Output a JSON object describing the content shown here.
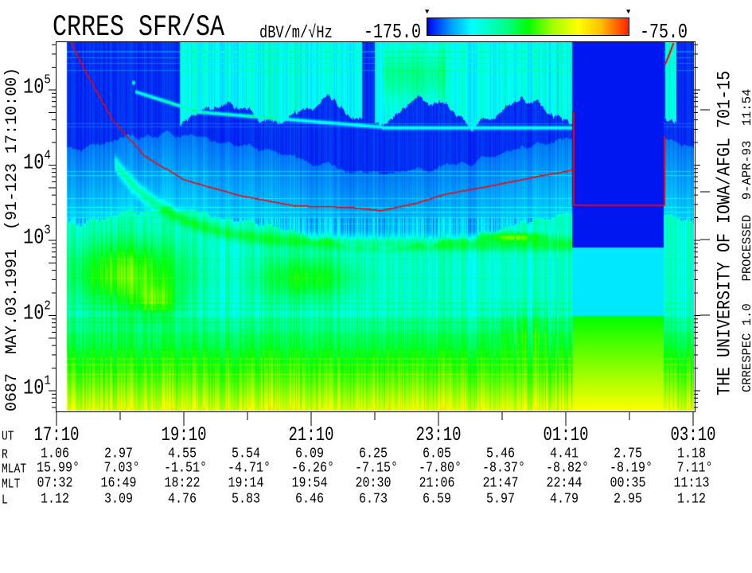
{
  "header": {
    "title": "CRRES SFR/SA",
    "units": "dBV/m/√Hz",
    "scale_min_label": "-175.0",
    "scale_max_label": "-75.0"
  },
  "side_left": "0687  MAY.03.1991  (91-123 17:10:00)",
  "side_right_main": "THE UNIVERSITY OF IOWA/AFGL 701-15",
  "side_right_sub": "CRRESPEC 1.0   PROCESSED  9-APR-93  11:54",
  "chart_data": {
    "type": "heatmap",
    "title": "CRRES SFR/SA",
    "colorbar": {
      "label": "dBV/m/√Hz",
      "min": -175.0,
      "max": -75.0,
      "colors": [
        "#0000f0",
        "#00ffff",
        "#00ff00",
        "#ffff00",
        "#ff2000"
      ]
    },
    "y_axis": {
      "scale": "log",
      "range": [
        5.5,
        430000
      ],
      "tick_labels": [
        {
          "base": "10",
          "exp": "5",
          "value": 100000
        },
        {
          "base": "10",
          "exp": "4",
          "value": 10000
        },
        {
          "base": "10",
          "exp": "3",
          "value": 1000
        },
        {
          "base": "10",
          "exp": "2",
          "value": 100
        },
        {
          "base": "10",
          "exp": "1",
          "value": 10
        }
      ]
    },
    "x_axis": {
      "range": [
        "17:10",
        "03:10"
      ],
      "tick_labels": [
        "17:10",
        "19:10",
        "21:10",
        "23:10",
        "01:10",
        "03:10"
      ]
    },
    "overlay_curve": {
      "color": "#ff0000",
      "segments": [
        [
          [
            "17:23",
            430000
          ],
          [
            "17:36",
            184000
          ],
          [
            "18:02",
            40600
          ],
          [
            "18:32",
            13600
          ],
          [
            "19:09",
            6530
          ],
          [
            "20:02",
            4010
          ],
          [
            "20:54",
            2920
          ],
          [
            "21:47",
            2780
          ],
          [
            "22:15",
            2520
          ],
          [
            "22:47",
            3140
          ],
          [
            "23:17",
            4210
          ],
          [
            "00:02",
            5500
          ],
          [
            "00:47",
            7380
          ],
          [
            "01:16",
            8740
          ]
        ],
        [
          [
            "01:17",
            51800
          ],
          [
            "01:17",
            2990
          ],
          [
            "02:42",
            2990
          ],
          [
            "02:42",
            24900
          ]
        ],
        [
          [
            "02:43",
            223000
          ],
          [
            "02:51",
            430000
          ]
        ]
      ]
    },
    "ephemeris": {
      "row_labels": {
        "ut": "UT",
        "r": "R",
        "mlat": "MLAT",
        "mlt": "MLT",
        "l": "L"
      },
      "r": [
        "1.06",
        "2.97",
        "4.55",
        "5.54",
        "6.09",
        "6.25",
        "6.05",
        "5.46",
        "4.41",
        "2.75",
        "1.18"
      ],
      "mlat": [
        "15.99°",
        "7.03°",
        "-1.51°",
        "-4.71°",
        "-6.26°",
        "-7.15°",
        "-7.80°",
        "-8.37°",
        "-8.82°",
        "-8.19°",
        "7.11°"
      ],
      "mlt": [
        "07:32",
        "16:49",
        "18:22",
        "19:14",
        "19:54",
        "20:30",
        "21:06",
        "21:47",
        "22:44",
        "00:35",
        "11:13"
      ],
      "l": [
        "1.12",
        "3.09",
        "4.76",
        "5.83",
        "6.46",
        "6.73",
        "6.59",
        "5.97",
        "4.79",
        "2.95",
        "1.12"
      ]
    }
  }
}
